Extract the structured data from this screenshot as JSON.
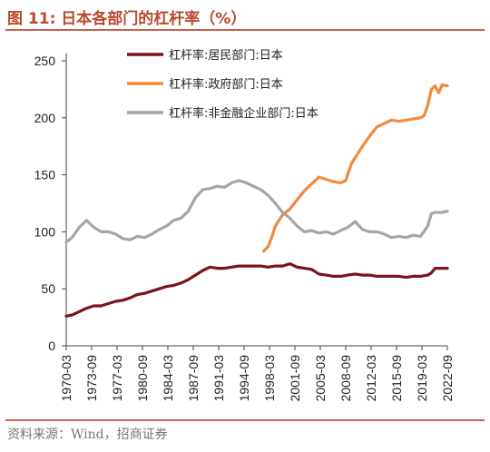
{
  "header": {
    "title": "图 11:  日本各部门的杠杆率（%）",
    "source": "资料来源：Wind，招商证券"
  },
  "colors": {
    "household": "#7b1416",
    "government": "#f08a3c",
    "nonfinancial": "#a6a6a6",
    "accent": "#c9604a"
  },
  "chart_data": {
    "type": "line",
    "title": "",
    "xlabel": "",
    "ylabel": "",
    "ylim": [
      0,
      250
    ],
    "yticks": [
      0,
      50,
      100,
      150,
      200,
      250
    ],
    "xticks": [
      "1970-03",
      "1973-09",
      "1977-03",
      "1980-09",
      "1984-03",
      "1987-09",
      "1991-03",
      "1994-09",
      "1998-03",
      "2001-09",
      "2005-03",
      "2008-09",
      "2012-03",
      "2015-09",
      "2019-03",
      "2022-09"
    ],
    "grid": false,
    "legend_position": "top-right",
    "series": [
      {
        "name": "杠杆率:居民部门:日本",
        "color_key": "household",
        "x": [
          1970.2,
          1971.0,
          1972.0,
          1973.0,
          1974.0,
          1975.0,
          1976.0,
          1977.0,
          1978.0,
          1979.0,
          1980.0,
          1981.0,
          1982.0,
          1983.0,
          1984.0,
          1985.0,
          1986.0,
          1987.0,
          1988.0,
          1989.0,
          1990.0,
          1991.0,
          1992.0,
          1993.0,
          1994.0,
          1995.0,
          1996.0,
          1997.0,
          1998.0,
          1999.0,
          2000.0,
          2001.0,
          2002.0,
          2003.0,
          2004.0,
          2005.0,
          2006.0,
          2007.0,
          2008.0,
          2009.0,
          2010.0,
          2011.0,
          2012.0,
          2013.0,
          2014.0,
          2015.0,
          2016.0,
          2017.0,
          2018.0,
          2019.0,
          2020.0,
          2020.5,
          2021.0,
          2022.0,
          2022.7
        ],
        "y": [
          26,
          27,
          30,
          33,
          35,
          35,
          37,
          39,
          40,
          42,
          45,
          46,
          48,
          50,
          52,
          53,
          55,
          58,
          62,
          66,
          69,
          68,
          68,
          69,
          70,
          70,
          70,
          70,
          69,
          70,
          70,
          72,
          69,
          68,
          67,
          63,
          62,
          61,
          61,
          62,
          63,
          62,
          62,
          61,
          61,
          61,
          61,
          60,
          61,
          61,
          62,
          64,
          68,
          68,
          68
        ]
      },
      {
        "name": "杠杆率:政府部门:日本",
        "color_key": "government",
        "x": [
          1997.4,
          1998.0,
          1998.5,
          1999.0,
          2000.0,
          2001.0,
          2002.0,
          2003.0,
          2004.0,
          2005.0,
          2006.0,
          2007.0,
          2008.0,
          2008.7,
          2009.5,
          2010.0,
          2011.0,
          2012.0,
          2013.0,
          2014.0,
          2015.0,
          2016.0,
          2017.0,
          2018.0,
          2019.0,
          2019.5,
          2020.0,
          2020.5,
          2021.0,
          2021.5,
          2022.0,
          2022.7
        ],
        "y": [
          83,
          87,
          95,
          105,
          115,
          120,
          128,
          136,
          142,
          148,
          146,
          144,
          143,
          145,
          160,
          165,
          175,
          184,
          192,
          195,
          198,
          197,
          198,
          199,
          200,
          202,
          211,
          225,
          228,
          222,
          229,
          228
        ]
      },
      {
        "name": "杠杆率:非金融企业部门:日本",
        "color_key": "nonfinancial",
        "x": [
          1970.2,
          1971.0,
          1972.0,
          1973.0,
          1974.0,
          1975.0,
          1976.0,
          1977.0,
          1978.0,
          1979.0,
          1980.0,
          1981.0,
          1982.0,
          1983.0,
          1984.0,
          1985.0,
          1986.0,
          1987.0,
          1988.0,
          1989.0,
          1990.0,
          1991.0,
          1992.0,
          1993.0,
          1994.0,
          1995.0,
          1996.0,
          1997.0,
          1998.0,
          1999.0,
          2000.0,
          2001.0,
          2002.0,
          2003.0,
          2004.0,
          2005.0,
          2006.0,
          2007.0,
          2008.0,
          2009.0,
          2010.0,
          2011.0,
          2012.0,
          2013.0,
          2014.0,
          2015.0,
          2016.0,
          2017.0,
          2018.0,
          2019.0,
          2020.0,
          2020.5,
          2021.0,
          2022.0,
          2022.7
        ],
        "y": [
          91,
          95,
          104,
          110,
          104,
          100,
          100,
          98,
          94,
          93,
          96,
          95,
          98,
          102,
          105,
          110,
          112,
          118,
          130,
          137,
          138,
          140,
          139,
          143,
          145,
          143,
          140,
          137,
          132,
          125,
          117,
          112,
          105,
          100,
          101,
          99,
          100,
          98,
          101,
          104,
          109,
          102,
          100,
          100,
          98,
          95,
          96,
          95,
          97,
          96,
          105,
          116,
          117,
          117,
          118
        ]
      }
    ]
  }
}
